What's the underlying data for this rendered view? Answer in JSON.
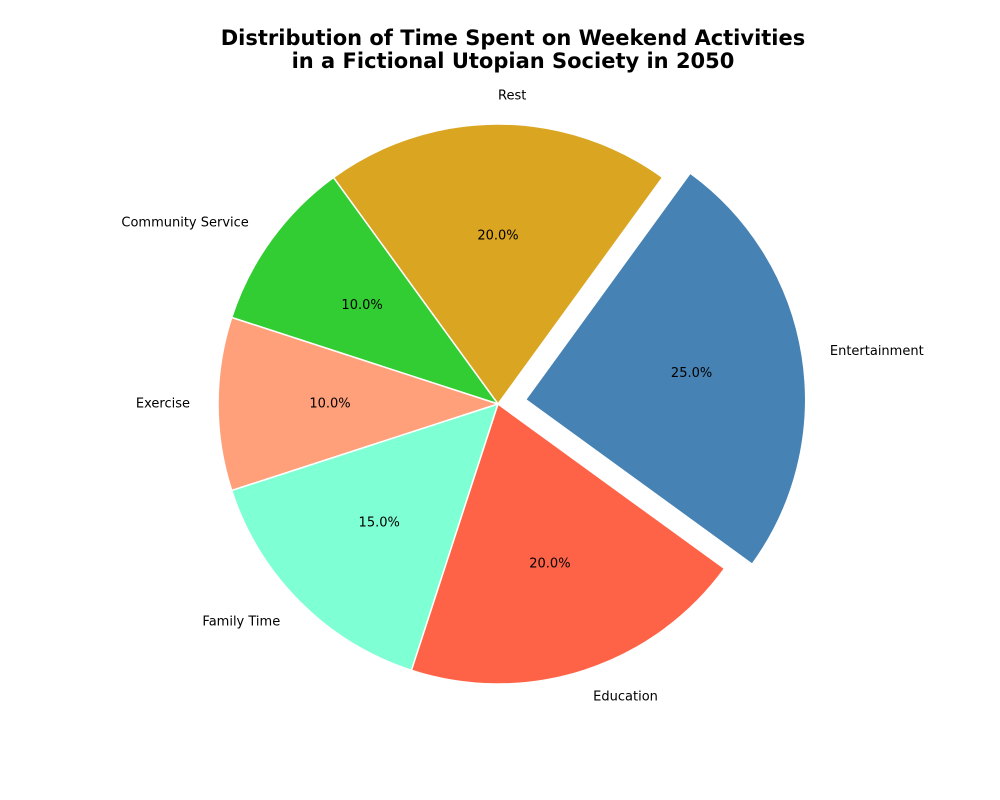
{
  "chart_data": {
    "type": "pie",
    "title_lines": [
      "Distribution of Time Spent on Weekend Activities",
      "in a Fictional Utopian Society in 2050"
    ],
    "start_angle": -36,
    "direction": "counterclockwise",
    "slices": [
      {
        "label": "Entertainment",
        "value": 25.0,
        "pct_label": "25.0%",
        "color": "#4682B4",
        "exploded": true
      },
      {
        "label": "Rest",
        "value": 20.0,
        "pct_label": "20.0%",
        "color": "#DAA520",
        "exploded": false
      },
      {
        "label": "Community Service",
        "value": 10.0,
        "pct_label": "10.0%",
        "color": "#32CD32",
        "exploded": false
      },
      {
        "label": "Exercise",
        "value": 10.0,
        "pct_label": "10.0%",
        "color": "#FFA07A",
        "exploded": false
      },
      {
        "label": "Family Time",
        "value": 15.0,
        "pct_label": "15.0%",
        "color": "#7FFFD4",
        "exploded": false
      },
      {
        "label": "Education",
        "value": 20.0,
        "pct_label": "20.0%",
        "color": "#FF6347",
        "exploded": false
      }
    ]
  }
}
